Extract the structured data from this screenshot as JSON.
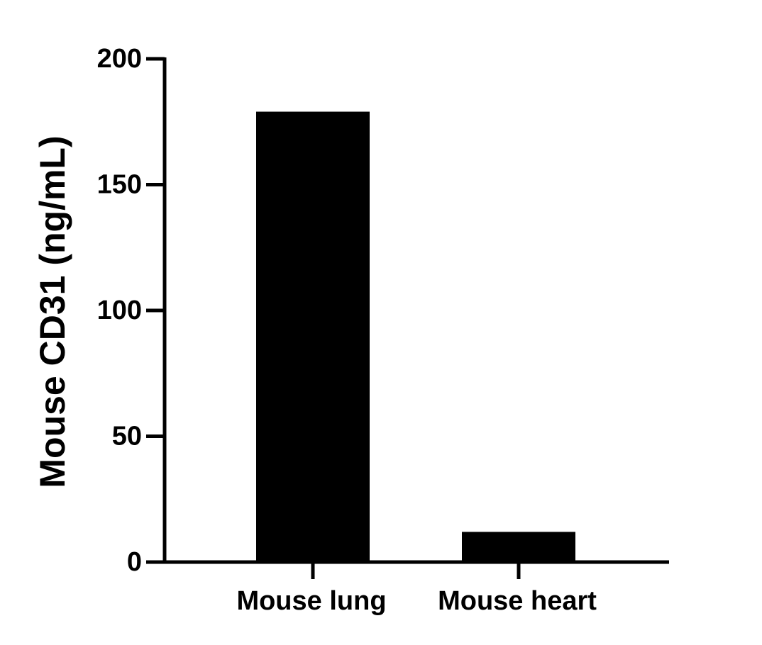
{
  "chart_data": {
    "type": "bar",
    "y_label": "Mouse CD31 (ng/mL)",
    "categories": [
      "Mouse lung",
      "Mouse heart"
    ],
    "values": [
      179,
      12
    ],
    "color": "#000000",
    "ylim": [
      0,
      200
    ],
    "yticks": [
      0,
      50,
      100,
      150,
      200
    ],
    "grid": false
  }
}
